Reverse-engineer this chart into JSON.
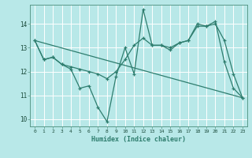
{
  "xlabel": "Humidex (Indice chaleur)",
  "bg_color": "#b8e8e8",
  "grid_color": "#ffffff",
  "line_color": "#2e7d6e",
  "xlim": [
    -0.5,
    23.5
  ],
  "ylim": [
    9.7,
    14.8
  ],
  "yticks": [
    10,
    11,
    12,
    13,
    14
  ],
  "xticks": [
    0,
    1,
    2,
    3,
    4,
    5,
    6,
    7,
    8,
    9,
    10,
    11,
    12,
    13,
    14,
    15,
    16,
    17,
    18,
    19,
    20,
    21,
    22,
    23
  ],
  "line1_x": [
    0,
    1,
    2,
    3,
    4,
    5,
    6,
    7,
    8,
    9,
    10,
    11,
    12,
    13,
    14,
    15,
    16,
    17,
    18,
    19,
    20,
    21,
    22,
    23
  ],
  "line1_y": [
    13.3,
    12.5,
    12.6,
    12.3,
    12.1,
    11.3,
    11.4,
    10.5,
    9.9,
    11.8,
    13.0,
    11.9,
    14.6,
    13.1,
    13.1,
    12.9,
    13.2,
    13.3,
    14.0,
    13.9,
    14.1,
    12.4,
    11.3,
    10.9
  ],
  "line2_x": [
    0,
    1,
    2,
    3,
    4,
    5,
    6,
    7,
    8,
    9,
    10,
    11,
    12,
    13,
    14,
    15,
    16,
    17,
    18,
    19,
    20,
    21,
    22,
    23
  ],
  "line2_y": [
    13.3,
    12.5,
    12.6,
    12.3,
    12.2,
    12.1,
    12.0,
    11.9,
    11.7,
    12.0,
    12.5,
    13.1,
    13.4,
    13.1,
    13.1,
    13.0,
    13.2,
    13.3,
    13.9,
    13.9,
    14.0,
    13.3,
    11.9,
    10.9
  ],
  "line3_x": [
    0,
    23
  ],
  "line3_y": [
    13.3,
    10.9
  ]
}
